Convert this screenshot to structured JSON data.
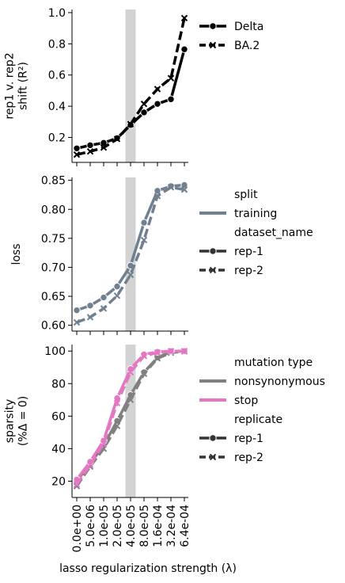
{
  "figure": {
    "xlabel": "lasso regularization strength (λ)",
    "xticks": [
      "0.0e+00",
      "5.0e-06",
      "1.0e-05",
      "2.0e-05",
      "4.0e-05",
      "8.0e-05",
      "1.6e-04",
      "3.2e-04",
      "6.4e-04"
    ],
    "highlight_tick": "4.0e-05",
    "highlight_color": "#d3d3d3"
  },
  "chart_data": [
    {
      "type": "line",
      "ylabel": [
        "rep1 v. rep2",
        "shift (R²)"
      ],
      "ylim": [
        0.04,
        1.02
      ],
      "yticks": [
        "0.2",
        "0.4",
        "0.6",
        "0.8",
        "1.0"
      ],
      "categories": [
        "0.0e+00",
        "5.0e-06",
        "1.0e-05",
        "2.0e-05",
        "4.0e-05",
        "8.0e-05",
        "1.6e-04",
        "3.2e-04",
        "6.4e-04"
      ],
      "legend": [
        {
          "label": "Delta",
          "color": "#000000",
          "dash": "solid",
          "marker": "circle"
        },
        {
          "label": "BA.2",
          "color": "#000000",
          "dash": "dashed",
          "marker": "x"
        }
      ],
      "series": [
        {
          "name": "Delta",
          "color": "#000000",
          "dash": "solid",
          "marker": "circle",
          "values": [
            0.13,
            0.15,
            0.165,
            0.195,
            0.28,
            0.36,
            0.415,
            0.445,
            0.765
          ]
        },
        {
          "name": "BA.2",
          "color": "#000000",
          "dash": "dashed",
          "marker": "x",
          "values": [
            0.09,
            0.11,
            0.135,
            0.19,
            0.285,
            0.415,
            0.51,
            0.58,
            0.965
          ]
        }
      ]
    },
    {
      "type": "line",
      "ylabel": [
        "loss"
      ],
      "ylim": [
        0.59,
        0.855
      ],
      "yticks": [
        "0.60",
        "0.65",
        "0.70",
        "0.75",
        "0.80",
        "0.85"
      ],
      "categories": [
        "0.0e+00",
        "5.0e-06",
        "1.0e-05",
        "2.0e-05",
        "4.0e-05",
        "8.0e-05",
        "1.6e-04",
        "3.2e-04",
        "6.4e-04"
      ],
      "legend": [
        {
          "label": "split",
          "type": "title"
        },
        {
          "label": "training",
          "color": "#708090",
          "dash": "solid",
          "marker": "none",
          "width": 4
        },
        {
          "label": "dataset_name",
          "type": "title"
        },
        {
          "label": "rep-1",
          "color": "#333333",
          "dash": "solid",
          "marker": "circle"
        },
        {
          "label": "rep-2",
          "color": "#333333",
          "dash": "dashed",
          "marker": "x"
        }
      ],
      "series": [
        {
          "name": "rep-1",
          "color": "#708090",
          "dash": "solid",
          "marker": "circle",
          "values": [
            0.626,
            0.634,
            0.648,
            0.667,
            0.703,
            0.777,
            0.832,
            0.84,
            0.842
          ]
        },
        {
          "name": "rep-2",
          "color": "#708090",
          "dash": "dashed",
          "marker": "x",
          "values": [
            0.605,
            0.614,
            0.629,
            0.651,
            0.687,
            0.747,
            0.823,
            0.838,
            0.834
          ]
        }
      ]
    },
    {
      "type": "line",
      "ylabel": [
        "sparsity",
        "(%Δ = 0)"
      ],
      "ylim": [
        10,
        104
      ],
      "yticks": [
        "20",
        "40",
        "60",
        "80",
        "100"
      ],
      "categories": [
        "0.0e+00",
        "5.0e-06",
        "1.0e-05",
        "2.0e-05",
        "4.0e-05",
        "8.0e-05",
        "1.6e-04",
        "3.2e-04",
        "6.4e-04"
      ],
      "legend": [
        {
          "label": "mutation type",
          "type": "title"
        },
        {
          "label": "nonsynonymous",
          "color": "#808080",
          "dash": "solid",
          "marker": "none",
          "width": 4
        },
        {
          "label": "stop",
          "color": "#e377c2",
          "dash": "solid",
          "marker": "none",
          "width": 4
        },
        {
          "label": "replicate",
          "type": "title"
        },
        {
          "label": "rep-1",
          "color": "#333333",
          "dash": "solid",
          "marker": "circle"
        },
        {
          "label": "rep-2",
          "color": "#333333",
          "dash": "dashed",
          "marker": "x"
        }
      ],
      "series": [
        {
          "name": "nonsynonymous rep-1",
          "color": "#808080",
          "dash": "solid",
          "marker": "circle",
          "values": [
            20,
            31,
            42,
            57,
            73,
            87,
            96,
            99.5,
            100
          ]
        },
        {
          "name": "nonsynonymous rep-2",
          "color": "#808080",
          "dash": "dashed",
          "marker": "x",
          "values": [
            17,
            29,
            40,
            54,
            70,
            86,
            95.5,
            99,
            99.8
          ]
        },
        {
          "name": "stop rep-1",
          "color": "#e377c2",
          "dash": "solid",
          "marker": "circle",
          "values": [
            21,
            32,
            45,
            71,
            89,
            98,
            99.5,
            100,
            100
          ]
        },
        {
          "name": "stop rep-2",
          "color": "#e377c2",
          "dash": "dashed",
          "marker": "x",
          "values": [
            18,
            30,
            43,
            68,
            87,
            97,
            99,
            100,
            100
          ]
        }
      ]
    }
  ]
}
